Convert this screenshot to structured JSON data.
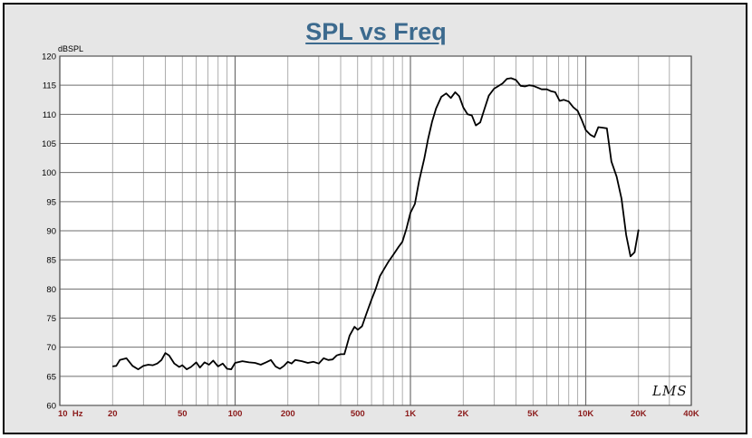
{
  "title": "SPL vs Freq",
  "signature": "LMS",
  "chart_data": {
    "type": "line",
    "title": "SPL vs Freq",
    "ylabel": "dBSPL",
    "xlabel": "",
    "x_scale": "log",
    "xlim": [
      10,
      40000
    ],
    "ylim": [
      60,
      120
    ],
    "y_ticks": [
      60,
      65,
      70,
      75,
      80,
      85,
      90,
      95,
      100,
      105,
      110,
      115,
      120
    ],
    "x_tick_labels": [
      {
        "value": 10,
        "label": "10  Hz"
      },
      {
        "value": 20,
        "label": "20"
      },
      {
        "value": 50,
        "label": "50"
      },
      {
        "value": 100,
        "label": "100"
      },
      {
        "value": 200,
        "label": "200"
      },
      {
        "value": 500,
        "label": "500"
      },
      {
        "value": 1000,
        "label": "1K"
      },
      {
        "value": 2000,
        "label": "2K"
      },
      {
        "value": 5000,
        "label": "5K"
      },
      {
        "value": 10000,
        "label": "10K"
      },
      {
        "value": 20000,
        "label": "20K"
      },
      {
        "value": 40000,
        "label": "40K"
      }
    ],
    "grid": true,
    "colors": {
      "line": "#000000",
      "grid": "#9a9a9a",
      "tick_label": "#8b1a1a",
      "y_label": "#000000",
      "plot_bg": "#ffffff"
    },
    "series": [
      {
        "x": [
          20,
          21,
          22,
          24,
          26,
          28,
          30,
          32,
          34,
          36,
          38,
          40,
          42,
          45,
          48,
          50,
          53,
          56,
          60,
          63,
          67,
          71,
          75,
          80,
          85,
          90,
          95,
          100,
          110,
          120,
          130,
          140,
          150,
          160,
          170,
          180,
          190,
          200,
          210,
          220,
          240,
          260,
          280,
          300,
          320,
          340,
          360,
          380,
          400,
          420,
          450,
          480,
          500,
          530,
          560,
          600,
          630,
          670,
          710,
          750,
          800,
          850,
          900,
          950,
          1000,
          1060,
          1120,
          1200,
          1260,
          1330,
          1400,
          1500,
          1600,
          1700,
          1800,
          1900,
          2000,
          2120,
          2240,
          2360,
          2500,
          2650,
          2800,
          3000,
          3150,
          3350,
          3550,
          3750,
          4000,
          4250,
          4500,
          4750,
          5000,
          5300,
          5600,
          6000,
          6300,
          6700,
          7100,
          7500,
          8000,
          8500,
          9000,
          9500,
          10000,
          10600,
          11200,
          11800,
          12500,
          13200,
          14000,
          15000,
          16000,
          17000,
          18000,
          19000,
          20000
        ],
        "y": [
          66.7,
          66.8,
          67.8,
          68.1,
          66.8,
          66.2,
          66.8,
          67.0,
          66.9,
          67.2,
          67.8,
          69.0,
          68.6,
          67.2,
          66.6,
          66.9,
          66.2,
          66.6,
          67.4,
          66.5,
          67.4,
          67.0,
          67.7,
          66.7,
          67.2,
          66.3,
          66.2,
          67.3,
          67.6,
          67.4,
          67.3,
          67.0,
          67.4,
          67.8,
          66.7,
          66.3,
          66.8,
          67.5,
          67.2,
          67.8,
          67.6,
          67.3,
          67.5,
          67.2,
          68.1,
          67.8,
          67.9,
          68.6,
          68.8,
          68.8,
          72.0,
          73.5,
          73.0,
          73.6,
          75.7,
          78.2,
          79.8,
          82.2,
          83.5,
          84.7,
          85.9,
          87.1,
          88.1,
          90.4,
          93.1,
          94.6,
          98.5,
          102.4,
          105.7,
          108.8,
          111.0,
          113.0,
          113.6,
          112.8,
          113.8,
          113.1,
          111.2,
          110.0,
          109.8,
          108.1,
          108.6,
          111.0,
          113.2,
          114.4,
          114.8,
          115.3,
          116.1,
          116.2,
          115.9,
          114.9,
          114.8,
          115.0,
          114.9,
          114.6,
          114.3,
          114.3,
          114.0,
          113.8,
          112.3,
          112.5,
          112.2,
          111.2,
          110.6,
          109.0,
          107.3,
          106.5,
          106.1,
          107.8,
          107.7,
          107.6,
          101.9,
          99.3,
          95.5,
          89.3,
          85.6,
          86.3,
          90.2
        ]
      }
    ]
  }
}
